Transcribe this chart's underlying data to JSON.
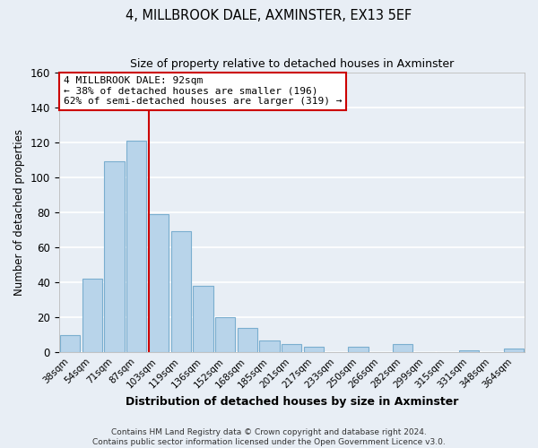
{
  "title": "4, MILLBROOK DALE, AXMINSTER, EX13 5EF",
  "subtitle": "Size of property relative to detached houses in Axminster",
  "xlabel": "Distribution of detached houses by size in Axminster",
  "ylabel": "Number of detached properties",
  "bar_labels": [
    "38sqm",
    "54sqm",
    "71sqm",
    "87sqm",
    "103sqm",
    "119sqm",
    "136sqm",
    "152sqm",
    "168sqm",
    "185sqm",
    "201sqm",
    "217sqm",
    "233sqm",
    "250sqm",
    "266sqm",
    "282sqm",
    "299sqm",
    "315sqm",
    "331sqm",
    "348sqm",
    "364sqm"
  ],
  "bar_values": [
    10,
    42,
    109,
    121,
    79,
    69,
    38,
    20,
    14,
    7,
    5,
    3,
    0,
    3,
    0,
    5,
    0,
    0,
    1,
    0,
    2
  ],
  "bar_color": "#b8d4ea",
  "bar_edge_color": "#7aaecf",
  "vline_x": 4,
  "vline_color": "#cc0000",
  "ylim": [
    0,
    160
  ],
  "yticks": [
    0,
    20,
    40,
    60,
    80,
    100,
    120,
    140,
    160
  ],
  "annotation_title": "4 MILLBROOK DALE: 92sqm",
  "annotation_line1": "← 38% of detached houses are smaller (196)",
  "annotation_line2": "62% of semi-detached houses are larger (319) →",
  "footer_line1": "Contains HM Land Registry data © Crown copyright and database right 2024.",
  "footer_line2": "Contains public sector information licensed under the Open Government Licence v3.0.",
  "bg_color": "#e8eef5",
  "plot_bg_color": "#e8eef5"
}
